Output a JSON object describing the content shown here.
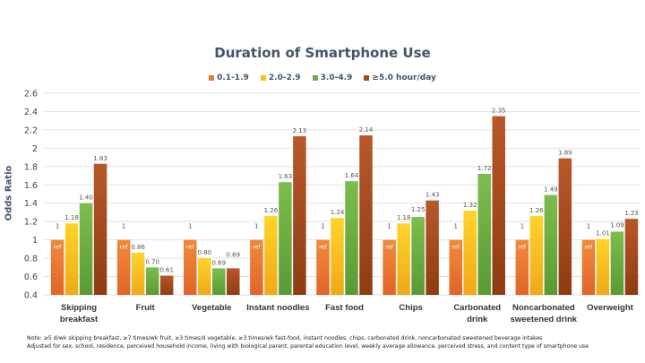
{
  "chart_data": {
    "type": "bar",
    "title": "Duration of Smartphone Use",
    "ylabel": "Odds Ratio",
    "xlabel": "",
    "ylim": [
      0.4,
      2.6
    ],
    "yticks": [
      "0.4",
      "0.6",
      "0.8",
      "1",
      "1.2",
      "1.4",
      "1.6",
      "1.8",
      "2",
      "2.2",
      "2.4",
      "2.6"
    ],
    "grid": true,
    "legend_position": "top",
    "categories": [
      [
        "Skipping",
        "breakfast"
      ],
      [
        "Fruit"
      ],
      [
        "Vegetable"
      ],
      [
        "Instant noodles"
      ],
      [
        "Fast food"
      ],
      [
        "Chips"
      ],
      [
        "Carbonated",
        "drink"
      ],
      [
        "Noncarbonated",
        "sweetened drink"
      ],
      [
        "Overweight"
      ]
    ],
    "series": [
      {
        "name": "0.1-1.9",
        "color": "#E87A2E",
        "values": [
          1,
          1,
          1,
          1,
          1,
          1,
          1,
          1,
          1
        ],
        "labels": [
          "1",
          "1",
          "1",
          "1",
          "1",
          "1",
          "1",
          "1",
          "1"
        ],
        "sublabel": "ref"
      },
      {
        "name": "2.0-2.9",
        "color": "#F5C21B",
        "values": [
          1.18,
          0.86,
          0.8,
          1.26,
          1.24,
          1.18,
          1.32,
          1.26,
          1.01
        ],
        "labels": [
          "1.18",
          "0.86",
          "0.80",
          "1.26",
          "1.24",
          "1.18",
          "1.32",
          "1.26",
          "1.01"
        ]
      },
      {
        "name": "3.0-4.9",
        "color": "#6DAE45",
        "values": [
          1.4,
          0.7,
          0.69,
          1.63,
          1.64,
          1.25,
          1.72,
          1.49,
          1.09
        ],
        "labels": [
          "1.40",
          "0.70",
          "0.69",
          "1.63",
          "1.64",
          "1.25",
          "1.72",
          "1.49",
          "1.09"
        ]
      },
      {
        "name": "≥5.0 hour/day",
        "color": "#A24A1C",
        "values": [
          1.83,
          0.61,
          0.69,
          2.13,
          2.14,
          1.43,
          2.35,
          1.89,
          1.23
        ],
        "labels": [
          "1.83",
          "0.61",
          "0.69",
          "2.13",
          "2.14",
          "1.43",
          "2.35",
          "1.89",
          "1.23"
        ]
      }
    ]
  },
  "notes": [
    "Note: ≥5 d/wk skipping breakfast, ≥7 times/wk fruit, ≥3 times/d vegetable, ≥3 times/wk fast-food, instant noodles, chips, carbonated drink, noncarbonated sweetened beverage intakes",
    "Adjusted for sex, school, residence, perceived household income, living with biological parent, parental education level, weekly average allowance, perceived stress, and content type of smartphone use"
  ]
}
